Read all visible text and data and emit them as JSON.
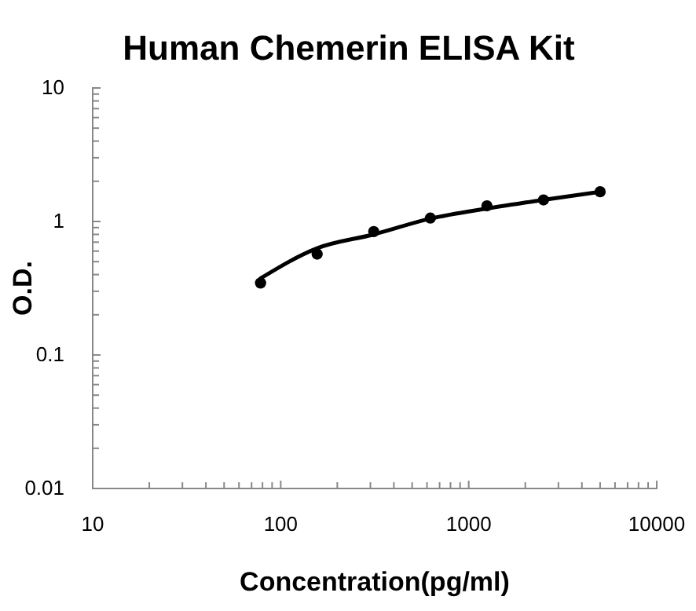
{
  "chart_data": {
    "type": "scatter",
    "title": "Human Chemerin ELISA Kit",
    "xlabel": "Concentration(pg/ml)",
    "ylabel": "O.D.",
    "log": "xy",
    "xlim": [
      10,
      10000
    ],
    "ylim": [
      0.01,
      10
    ],
    "xticks": [
      10,
      100,
      1000,
      10000
    ],
    "yticks": [
      0.01,
      0.1,
      1,
      10
    ],
    "grid": false,
    "series": [
      {
        "type": "line",
        "color": "#000000",
        "marker": "none",
        "line_style": "solid",
        "x": [
          78.125,
          156.25,
          312.5,
          625,
          1250,
          2500,
          5000
        ],
        "values": [
          0.375,
          0.63,
          0.8,
          1.05,
          1.25,
          1.45,
          1.67
        ]
      },
      {
        "color": "#000000",
        "marker": "circle",
        "x": [
          78.125,
          156.25,
          312.5,
          625,
          1250,
          2500,
          5000
        ],
        "values": [
          0.346,
          0.57,
          0.84,
          1.06,
          1.31,
          1.45,
          1.67
        ]
      }
    ]
  }
}
